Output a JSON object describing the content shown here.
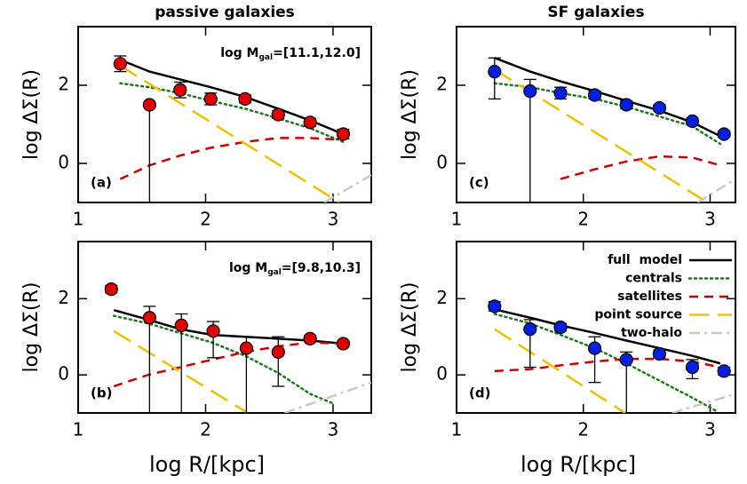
{
  "chart_data": [
    {
      "type": "line",
      "panel": "a",
      "title": "passive galaxies",
      "ylabel": "log ΔΣ(R)",
      "mass": {
        "prefix": "log M",
        "sub": "gal",
        "range": "=[11.1,12.0]"
      },
      "label": "(a)",
      "xlim": [
        1,
        3.3
      ],
      "ylim": [
        -1,
        3.5
      ],
      "xticks": [
        1,
        2,
        3
      ],
      "yticks": [
        0,
        2
      ],
      "points": {
        "color": "#e00000",
        "x": [
          1.33,
          1.56,
          1.8,
          2.04,
          2.31,
          2.57,
          2.82,
          3.08
        ],
        "values": [
          2.55,
          1.5,
          1.88,
          1.65,
          1.65,
          1.25,
          1.05,
          0.75
        ],
        "err_low": [
          0.2,
          2.5,
          0.2,
          0.15,
          0.1,
          0.1,
          0.1,
          0.12
        ],
        "err_high": [
          0.2,
          0,
          0.2,
          0.15,
          0.1,
          0.1,
          0.1,
          0.12
        ]
      },
      "series": [
        {
          "color": "#000000",
          "dash": "solid",
          "x": [
            1.33,
            1.56,
            1.8,
            2.04,
            2.31,
            2.57,
            2.82,
            3.08
          ],
          "values": [
            2.65,
            2.35,
            2.15,
            1.95,
            1.7,
            1.4,
            1.1,
            0.75
          ]
        },
        {
          "color": "#1a7a1a",
          "dash": "dotted",
          "x": [
            1.33,
            1.56,
            1.8,
            2.04,
            2.31,
            2.57,
            2.82,
            3.08
          ],
          "values": [
            2.05,
            1.95,
            1.8,
            1.6,
            1.4,
            1.15,
            0.9,
            0.55
          ]
        },
        {
          "color": "#d00000",
          "dash": "dashed",
          "x": [
            1.33,
            1.56,
            1.8,
            2.04,
            2.31,
            2.57,
            2.82,
            3.08
          ],
          "values": [
            -0.4,
            -0.05,
            0.2,
            0.4,
            0.55,
            0.65,
            0.65,
            0.6
          ]
        },
        {
          "color": "#f0c000",
          "dash": "longdash",
          "x": [
            1.33,
            3.05
          ],
          "values": [
            2.5,
            -1
          ]
        },
        {
          "color": "#c8c8c8",
          "dash": "dashdot",
          "x": [
            2.93,
            3.3
          ],
          "values": [
            -1,
            -0.3
          ]
        }
      ]
    },
    {
      "type": "line",
      "panel": "b",
      "ylabel": "log ΔΣ(R)",
      "xlabel": "log R/[kpc]",
      "mass": {
        "prefix": "log M",
        "sub": "gal",
        "range": "=[9.8,10.3]"
      },
      "label": "(b)",
      "xlim": [
        1,
        3.3
      ],
      "ylim": [
        -1,
        3.5
      ],
      "xticks": [
        1,
        2,
        3
      ],
      "yticks": [
        0,
        2
      ],
      "points": {
        "color": "#e00000",
        "x": [
          1.26,
          1.56,
          1.81,
          2.06,
          2.32,
          2.57,
          2.82,
          3.08
        ],
        "values": [
          2.25,
          1.5,
          1.3,
          1.15,
          0.7,
          0.6,
          0.95,
          0.82
        ],
        "err_low": [
          0.1,
          2.5,
          2.3,
          0.7,
          1.7,
          0.9,
          0.08,
          0.07
        ],
        "err_high": [
          0.1,
          0.3,
          0.3,
          0.25,
          0.3,
          0.4,
          0.08,
          0.07
        ]
      },
      "series": [
        {
          "color": "#000000",
          "dash": "solid",
          "x": [
            1.28,
            1.55,
            1.8,
            2.05,
            2.31,
            2.57,
            2.82,
            3.08
          ],
          "values": [
            1.7,
            1.45,
            1.2,
            1.05,
            1.0,
            0.95,
            0.9,
            0.82
          ]
        },
        {
          "color": "#1a7a1a",
          "dash": "dotted",
          "x": [
            1.28,
            1.55,
            1.8,
            2.05,
            2.31,
            2.57,
            2.82,
            3.0
          ],
          "values": [
            1.55,
            1.35,
            1.1,
            0.85,
            0.5,
            0.05,
            -0.5,
            -0.75
          ]
        },
        {
          "color": "#d00000",
          "dash": "dashed",
          "x": [
            1.28,
            1.55,
            1.8,
            2.05,
            2.31,
            2.57,
            2.82,
            3.08
          ],
          "values": [
            -0.3,
            0.0,
            0.2,
            0.4,
            0.6,
            0.75,
            0.85,
            0.82
          ]
        },
        {
          "color": "#f0c000",
          "dash": "longdash",
          "x": [
            1.28,
            2.33
          ],
          "values": [
            1.15,
            -1
          ]
        },
        {
          "color": "#c8c8c8",
          "dash": "dashdot",
          "x": [
            2.62,
            3.3
          ],
          "values": [
            -1,
            -0.2
          ]
        }
      ]
    },
    {
      "type": "line",
      "panel": "c",
      "title": "SF galaxies",
      "ylabel": "log ΔΣ(R)",
      "label": "(c)",
      "xlim": [
        1,
        3.2
      ],
      "ylim": [
        -1,
        3.5
      ],
      "xticks": [
        1,
        2,
        3
      ],
      "yticks": [
        0,
        2
      ],
      "points": {
        "color": "#0020e0",
        "x": [
          1.3,
          1.58,
          1.82,
          2.09,
          2.34,
          2.6,
          2.86,
          3.11
        ],
        "values": [
          2.35,
          1.85,
          1.8,
          1.75,
          1.5,
          1.42,
          1.08,
          0.75
        ],
        "err_low": [
          0.7,
          2.85,
          0.15,
          0.1,
          0.1,
          0.08,
          0.08,
          0.08
        ],
        "err_high": [
          0.35,
          0.3,
          0.15,
          0.1,
          0.1,
          0.08,
          0.08,
          0.08
        ]
      },
      "series": [
        {
          "color": "#000000",
          "dash": "solid",
          "x": [
            1.3,
            1.58,
            1.82,
            2.09,
            2.34,
            2.6,
            2.86,
            3.08
          ],
          "values": [
            2.7,
            2.35,
            2.1,
            1.85,
            1.6,
            1.35,
            1.05,
            0.7
          ]
        },
        {
          "color": "#1a7a1a",
          "dash": "dotted",
          "x": [
            1.3,
            1.58,
            1.82,
            2.09,
            2.34,
            2.6,
            2.86,
            3.08
          ],
          "values": [
            2.05,
            1.95,
            1.8,
            1.65,
            1.45,
            1.2,
            0.95,
            0.5
          ]
        },
        {
          "color": "#d00000",
          "dash": "dashed",
          "x": [
            1.82,
            2.09,
            2.34,
            2.6,
            2.86,
            3.08
          ],
          "values": [
            -0.4,
            -0.15,
            0.05,
            0.18,
            0.15,
            -0.05
          ]
        },
        {
          "color": "#f0c000",
          "dash": "longdash",
          "x": [
            1.3,
            2.98
          ],
          "values": [
            2.4,
            -1
          ]
        },
        {
          "color": "#c8c8c8",
          "dash": "dashdot",
          "x": [
            2.9,
            3.2
          ],
          "values": [
            -1,
            -0.4
          ]
        }
      ]
    },
    {
      "type": "line",
      "panel": "d",
      "ylabel": "log ΔΣ(R)",
      "xlabel": "log R/[kpc]",
      "label": "(d)",
      "xlim": [
        1,
        3.2
      ],
      "ylim": [
        -1,
        3.5
      ],
      "xticks": [
        1,
        2,
        3
      ],
      "yticks": [
        0,
        2
      ],
      "legend": "upper right",
      "points": {
        "color": "#0020e0",
        "x": [
          1.3,
          1.58,
          1.82,
          2.09,
          2.34,
          2.6,
          2.86,
          3.11
        ],
        "values": [
          1.8,
          1.2,
          1.25,
          0.7,
          0.4,
          0.55,
          0.2,
          0.1
        ],
        "err_low": [
          0.12,
          1.0,
          0.1,
          0.9,
          1.5,
          0.1,
          0.3,
          0.1
        ],
        "err_high": [
          0.12,
          0.25,
          0.1,
          0.3,
          0.2,
          0.1,
          0.2,
          0.1
        ]
      },
      "series": [
        {
          "name": "full  model",
          "color": "#000000",
          "dash": "solid",
          "x": [
            1.3,
            1.58,
            1.82,
            2.09,
            2.34,
            2.6,
            2.86,
            3.08
          ],
          "values": [
            1.72,
            1.5,
            1.3,
            1.1,
            0.9,
            0.7,
            0.5,
            0.3
          ]
        },
        {
          "name": "centrals",
          "color": "#1a7a1a",
          "dash": "dotted",
          "x": [
            1.3,
            1.58,
            1.82,
            2.09,
            2.34,
            2.6,
            2.86,
            3.05
          ],
          "values": [
            1.6,
            1.35,
            1.05,
            0.7,
            0.3,
            -0.15,
            -0.6,
            -0.95
          ]
        },
        {
          "name": "satellites",
          "color": "#d00000",
          "dash": "dashed",
          "x": [
            1.3,
            1.58,
            1.82,
            2.09,
            2.34,
            2.6,
            2.86,
            3.08
          ],
          "values": [
            0.1,
            0.15,
            0.25,
            0.35,
            0.42,
            0.42,
            0.35,
            0.2
          ]
        },
        {
          "name": "point source",
          "color": "#f0c000",
          "dash": "longdash",
          "x": [
            1.3,
            2.33
          ],
          "values": [
            1.2,
            -1
          ]
        },
        {
          "name": "two-halo",
          "color": "#c8c8c8",
          "dash": "dashdot",
          "x": [
            2.7,
            3.2
          ],
          "values": [
            -1,
            -0.5
          ]
        }
      ]
    }
  ]
}
